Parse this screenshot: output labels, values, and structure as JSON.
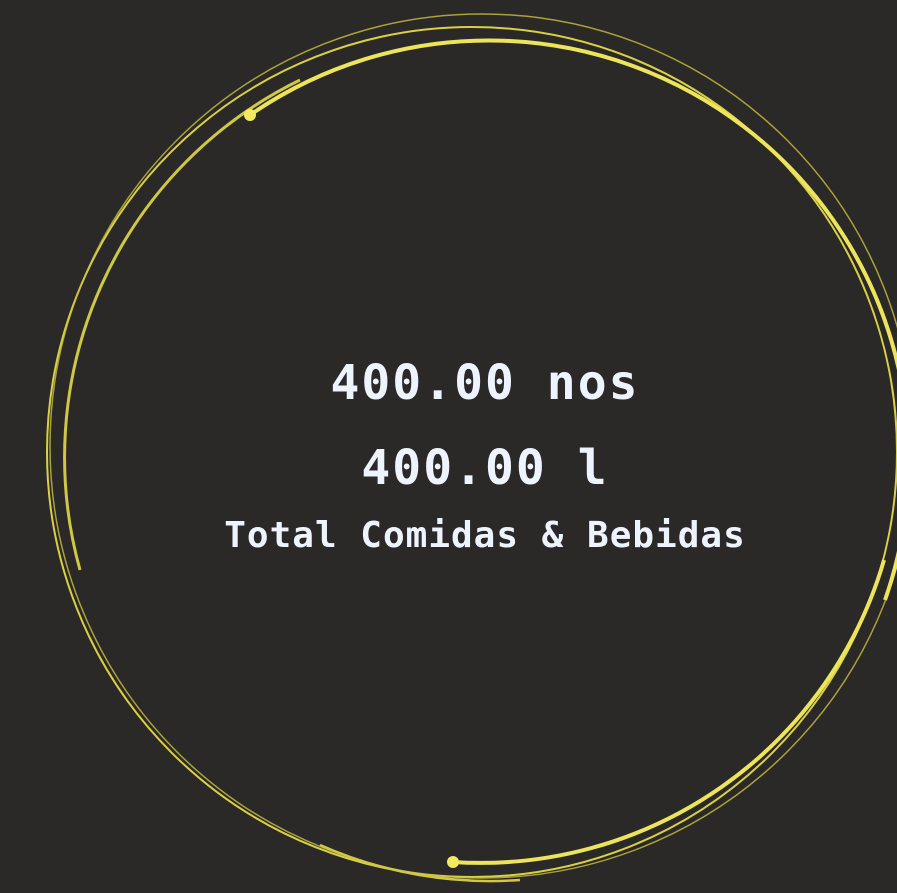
{
  "widget": {
    "line1": "400.00 nos",
    "line2": "400.00 l",
    "caption": "Total Comidas & Bebidas"
  }
}
